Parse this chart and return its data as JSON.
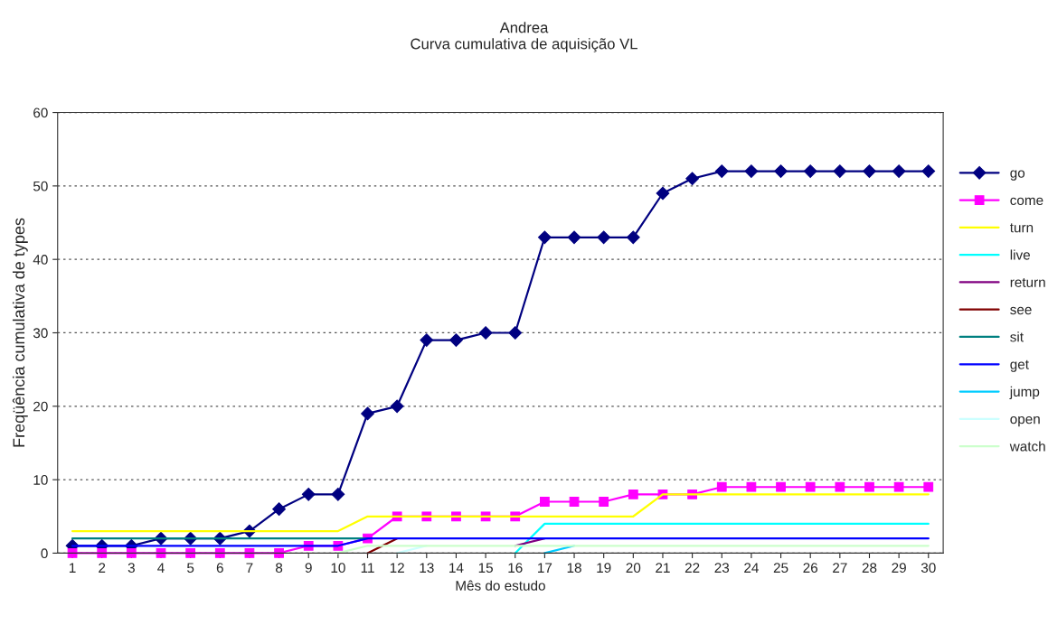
{
  "chart_data": {
    "type": "line",
    "title": "Andrea\nCurva cumulativa de aquisição VL",
    "xlabel": "Mês do estudo",
    "ylabel": "Freqüência cumulativa de types",
    "categories": [
      "1",
      "2",
      "3",
      "4",
      "5",
      "6",
      "7",
      "8",
      "9",
      "10",
      "11",
      "12",
      "13",
      "14",
      "15",
      "16",
      "17",
      "18",
      "19",
      "20",
      "21",
      "22",
      "23",
      "24",
      "25",
      "26",
      "27",
      "28",
      "29",
      "30"
    ],
    "ylim": [
      0,
      60
    ],
    "yticks": [
      0,
      10,
      20,
      30,
      40,
      50,
      60
    ],
    "grid": "y",
    "legend": "right",
    "series": [
      {
        "name": "go",
        "color": "#000080",
        "marker": "diamond",
        "values": [
          1,
          1,
          1,
          2,
          2,
          2,
          3,
          6,
          8,
          8,
          19,
          20,
          29,
          29,
          30,
          30,
          43,
          43,
          43,
          43,
          49,
          51,
          52,
          52,
          52,
          52,
          52,
          52,
          52,
          52
        ]
      },
      {
        "name": "come",
        "color": "#ff00ff",
        "marker": "square",
        "values": [
          0,
          0,
          0,
          0,
          0,
          0,
          0,
          0,
          1,
          1,
          2,
          5,
          5,
          5,
          5,
          5,
          7,
          7,
          7,
          8,
          8,
          8,
          9,
          9,
          9,
          9,
          9,
          9,
          9,
          9
        ]
      },
      {
        "name": "turn",
        "color": "#ffff00",
        "values": [
          3,
          3,
          3,
          3,
          3,
          3,
          3,
          3,
          3,
          3,
          5,
          5,
          5,
          5,
          5,
          5,
          5,
          5,
          5,
          5,
          8,
          8,
          8,
          8,
          8,
          8,
          8,
          8,
          8,
          8
        ]
      },
      {
        "name": "live",
        "color": "#00ffff",
        "values": [
          null,
          null,
          null,
          null,
          null,
          null,
          null,
          null,
          null,
          null,
          null,
          null,
          null,
          null,
          null,
          0,
          4,
          4,
          4,
          4,
          4,
          4,
          4,
          4,
          4,
          4,
          4,
          4,
          4,
          4
        ]
      },
      {
        "name": "return",
        "color": "#800080",
        "values": [
          null,
          null,
          null,
          null,
          null,
          null,
          null,
          null,
          null,
          null,
          null,
          null,
          null,
          null,
          null,
          1,
          2,
          null,
          null,
          null,
          null,
          null,
          null,
          null,
          null,
          null,
          null,
          null,
          null,
          null
        ]
      },
      {
        "name": "see",
        "color": "#800000",
        "values": [
          null,
          null,
          null,
          null,
          null,
          null,
          null,
          null,
          null,
          null,
          0,
          2,
          null,
          null,
          null,
          null,
          null,
          null,
          null,
          null,
          null,
          null,
          null,
          null,
          null,
          null,
          null,
          null,
          null,
          null
        ]
      },
      {
        "name": "sit",
        "color": "#008080",
        "values": [
          2,
          2,
          2,
          2,
          2,
          2,
          2,
          2,
          2,
          2,
          2,
          null,
          null,
          null,
          null,
          null,
          null,
          null,
          null,
          null,
          null,
          null,
          null,
          null,
          null,
          null,
          null,
          null,
          null,
          null
        ]
      },
      {
        "name": "get",
        "color": "#0000ff",
        "values": [
          1,
          1,
          1,
          1,
          1,
          1,
          1,
          1,
          1,
          1,
          2,
          2,
          2,
          2,
          2,
          2,
          2,
          2,
          2,
          2,
          2,
          2,
          2,
          2,
          2,
          2,
          2,
          2,
          2,
          2
        ]
      },
      {
        "name": "jump",
        "color": "#00ccff",
        "values": [
          null,
          null,
          null,
          null,
          null,
          null,
          null,
          null,
          null,
          null,
          null,
          null,
          null,
          null,
          null,
          null,
          0,
          1,
          null,
          null,
          null,
          null,
          null,
          null,
          null,
          null,
          null,
          null,
          null,
          null
        ]
      },
      {
        "name": "open",
        "color": "#ccffff",
        "values": [
          null,
          null,
          null,
          null,
          null,
          null,
          null,
          null,
          null,
          null,
          null,
          0,
          1,
          null,
          null,
          null,
          null,
          null,
          null,
          null,
          null,
          null,
          null,
          null,
          null,
          null,
          null,
          null,
          null,
          null
        ]
      },
      {
        "name": "watch",
        "color": "#ccffcc",
        "values": [
          null,
          null,
          null,
          null,
          null,
          null,
          null,
          null,
          null,
          0,
          1,
          1,
          1,
          1,
          1,
          1,
          1,
          1,
          1,
          1,
          1,
          1,
          1,
          1,
          1,
          1,
          1,
          1,
          1,
          1
        ]
      }
    ]
  }
}
